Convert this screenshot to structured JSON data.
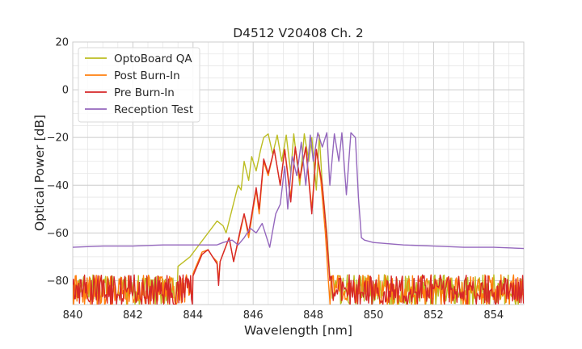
{
  "chart_data": {
    "type": "line",
    "title": "D4512 V20408 Ch. 2",
    "xlabel": "Wavelength [nm]",
    "ylabel": "Optical Power [dB]",
    "xlim": [
      840,
      855
    ],
    "ylim": [
      -90,
      20
    ],
    "xticks": [
      840,
      842,
      844,
      846,
      848,
      850,
      852,
      854
    ],
    "yticks": [
      20,
      0,
      -20,
      -40,
      -60,
      -80
    ],
    "xtick_labels": [
      "840",
      "842",
      "844",
      "846",
      "848",
      "850",
      "852",
      "854"
    ],
    "ytick_labels": [
      "20",
      "0",
      "−20",
      "−40",
      "−60",
      "−80"
    ],
    "grid": true,
    "legend_position": "top-left",
    "series": [
      {
        "name": "OptoBoard QA",
        "color": "#bcbd22",
        "noise_floor": -80,
        "noise_start": 840,
        "noise_end": 855,
        "points": [
          [
            843.5,
            -74
          ],
          [
            843.9,
            -70
          ],
          [
            844.2,
            -65
          ],
          [
            844.5,
            -60
          ],
          [
            844.8,
            -55
          ],
          [
            845.0,
            -57
          ],
          [
            845.1,
            -60
          ],
          [
            845.3,
            -50
          ],
          [
            845.5,
            -40
          ],
          [
            845.6,
            -42
          ],
          [
            845.7,
            -30
          ],
          [
            845.85,
            -38
          ],
          [
            845.95,
            -28
          ],
          [
            846.1,
            -34
          ],
          [
            846.25,
            -25
          ],
          [
            846.35,
            -20
          ],
          [
            846.5,
            -18.5
          ],
          [
            846.65,
            -27
          ],
          [
            846.8,
            -19
          ],
          [
            846.95,
            -30
          ],
          [
            847.1,
            -19
          ],
          [
            847.25,
            -35
          ],
          [
            847.35,
            -18.5
          ],
          [
            847.55,
            -40
          ],
          [
            847.7,
            -18.5
          ],
          [
            847.85,
            -30
          ],
          [
            847.95,
            -20
          ],
          [
            848.1,
            -42
          ],
          [
            848.2,
            -19
          ],
          [
            848.3,
            -40
          ],
          [
            848.45,
            -60
          ],
          [
            848.55,
            -78
          ],
          [
            848.6,
            -80
          ]
        ]
      },
      {
        "name": "Post Burn-In",
        "color": "#ff7f0e",
        "noise_floor": -80,
        "noise_start": 840,
        "noise_end": 855,
        "points": [
          [
            844.0,
            -77
          ],
          [
            844.3,
            -68
          ],
          [
            844.5,
            -67
          ],
          [
            844.65,
            -70
          ],
          [
            844.8,
            -72
          ],
          [
            844.85,
            -80
          ],
          [
            844.9,
            -72
          ],
          [
            845.2,
            -62
          ],
          [
            845.35,
            -72
          ],
          [
            845.6,
            -58
          ],
          [
            845.7,
            -52
          ],
          [
            845.85,
            -62
          ],
          [
            846.1,
            -42
          ],
          [
            846.2,
            -52
          ],
          [
            846.35,
            -30
          ],
          [
            846.5,
            -36
          ],
          [
            846.7,
            -25
          ],
          [
            846.9,
            -40
          ],
          [
            847.05,
            -25
          ],
          [
            847.25,
            -45
          ],
          [
            847.4,
            -24
          ],
          [
            847.55,
            -38
          ],
          [
            847.75,
            -24
          ],
          [
            847.95,
            -50
          ],
          [
            848.1,
            -25
          ],
          [
            848.25,
            -38
          ],
          [
            848.4,
            -60
          ],
          [
            848.5,
            -80
          ]
        ]
      },
      {
        "name": "Pre Burn-In",
        "color": "#d62728",
        "noise_floor": -80,
        "noise_start": 840,
        "noise_end": 855,
        "points": [
          [
            844.0,
            -78
          ],
          [
            844.3,
            -69
          ],
          [
            844.5,
            -67
          ],
          [
            844.65,
            -70
          ],
          [
            844.8,
            -73
          ],
          [
            844.85,
            -82
          ],
          [
            844.9,
            -72
          ],
          [
            845.2,
            -62
          ],
          [
            845.35,
            -72
          ],
          [
            845.6,
            -57
          ],
          [
            845.7,
            -52
          ],
          [
            845.85,
            -60
          ],
          [
            846.1,
            -41
          ],
          [
            846.2,
            -50
          ],
          [
            846.35,
            -29
          ],
          [
            846.5,
            -35
          ],
          [
            846.7,
            -25
          ],
          [
            846.9,
            -40
          ],
          [
            847.05,
            -25
          ],
          [
            847.25,
            -47
          ],
          [
            847.4,
            -24
          ],
          [
            847.55,
            -37
          ],
          [
            847.75,
            -24
          ],
          [
            847.95,
            -52
          ],
          [
            848.1,
            -25
          ],
          [
            848.3,
            -40
          ],
          [
            848.45,
            -62
          ],
          [
            848.55,
            -80
          ]
        ]
      },
      {
        "name": "Reception Test",
        "color": "#9467bd",
        "points": [
          [
            840,
            -66
          ],
          [
            841,
            -65.5
          ],
          [
            842,
            -65.5
          ],
          [
            843,
            -65
          ],
          [
            844,
            -65
          ],
          [
            844.8,
            -65
          ],
          [
            845.0,
            -64
          ],
          [
            845.3,
            -63
          ],
          [
            845.5,
            -65
          ],
          [
            845.7,
            -62
          ],
          [
            845.9,
            -58
          ],
          [
            846.1,
            -60
          ],
          [
            846.3,
            -56
          ],
          [
            846.55,
            -66
          ],
          [
            846.75,
            -52
          ],
          [
            846.9,
            -48
          ],
          [
            847.05,
            -32
          ],
          [
            847.15,
            -50
          ],
          [
            847.3,
            -28
          ],
          [
            847.45,
            -36
          ],
          [
            847.6,
            -22
          ],
          [
            847.75,
            -40
          ],
          [
            847.9,
            -19
          ],
          [
            848.0,
            -30
          ],
          [
            848.15,
            -18
          ],
          [
            848.3,
            -24
          ],
          [
            848.45,
            -18
          ],
          [
            848.55,
            -40
          ],
          [
            848.7,
            -18.5
          ],
          [
            848.85,
            -30
          ],
          [
            848.95,
            -18
          ],
          [
            849.1,
            -44
          ],
          [
            849.25,
            -18
          ],
          [
            849.4,
            -20
          ],
          [
            849.5,
            -45
          ],
          [
            849.6,
            -62
          ],
          [
            849.7,
            -63
          ],
          [
            850,
            -64
          ],
          [
            851,
            -65
          ],
          [
            852,
            -65.5
          ],
          [
            853,
            -66
          ],
          [
            854,
            -66
          ],
          [
            855,
            -66.5
          ]
        ]
      }
    ]
  }
}
